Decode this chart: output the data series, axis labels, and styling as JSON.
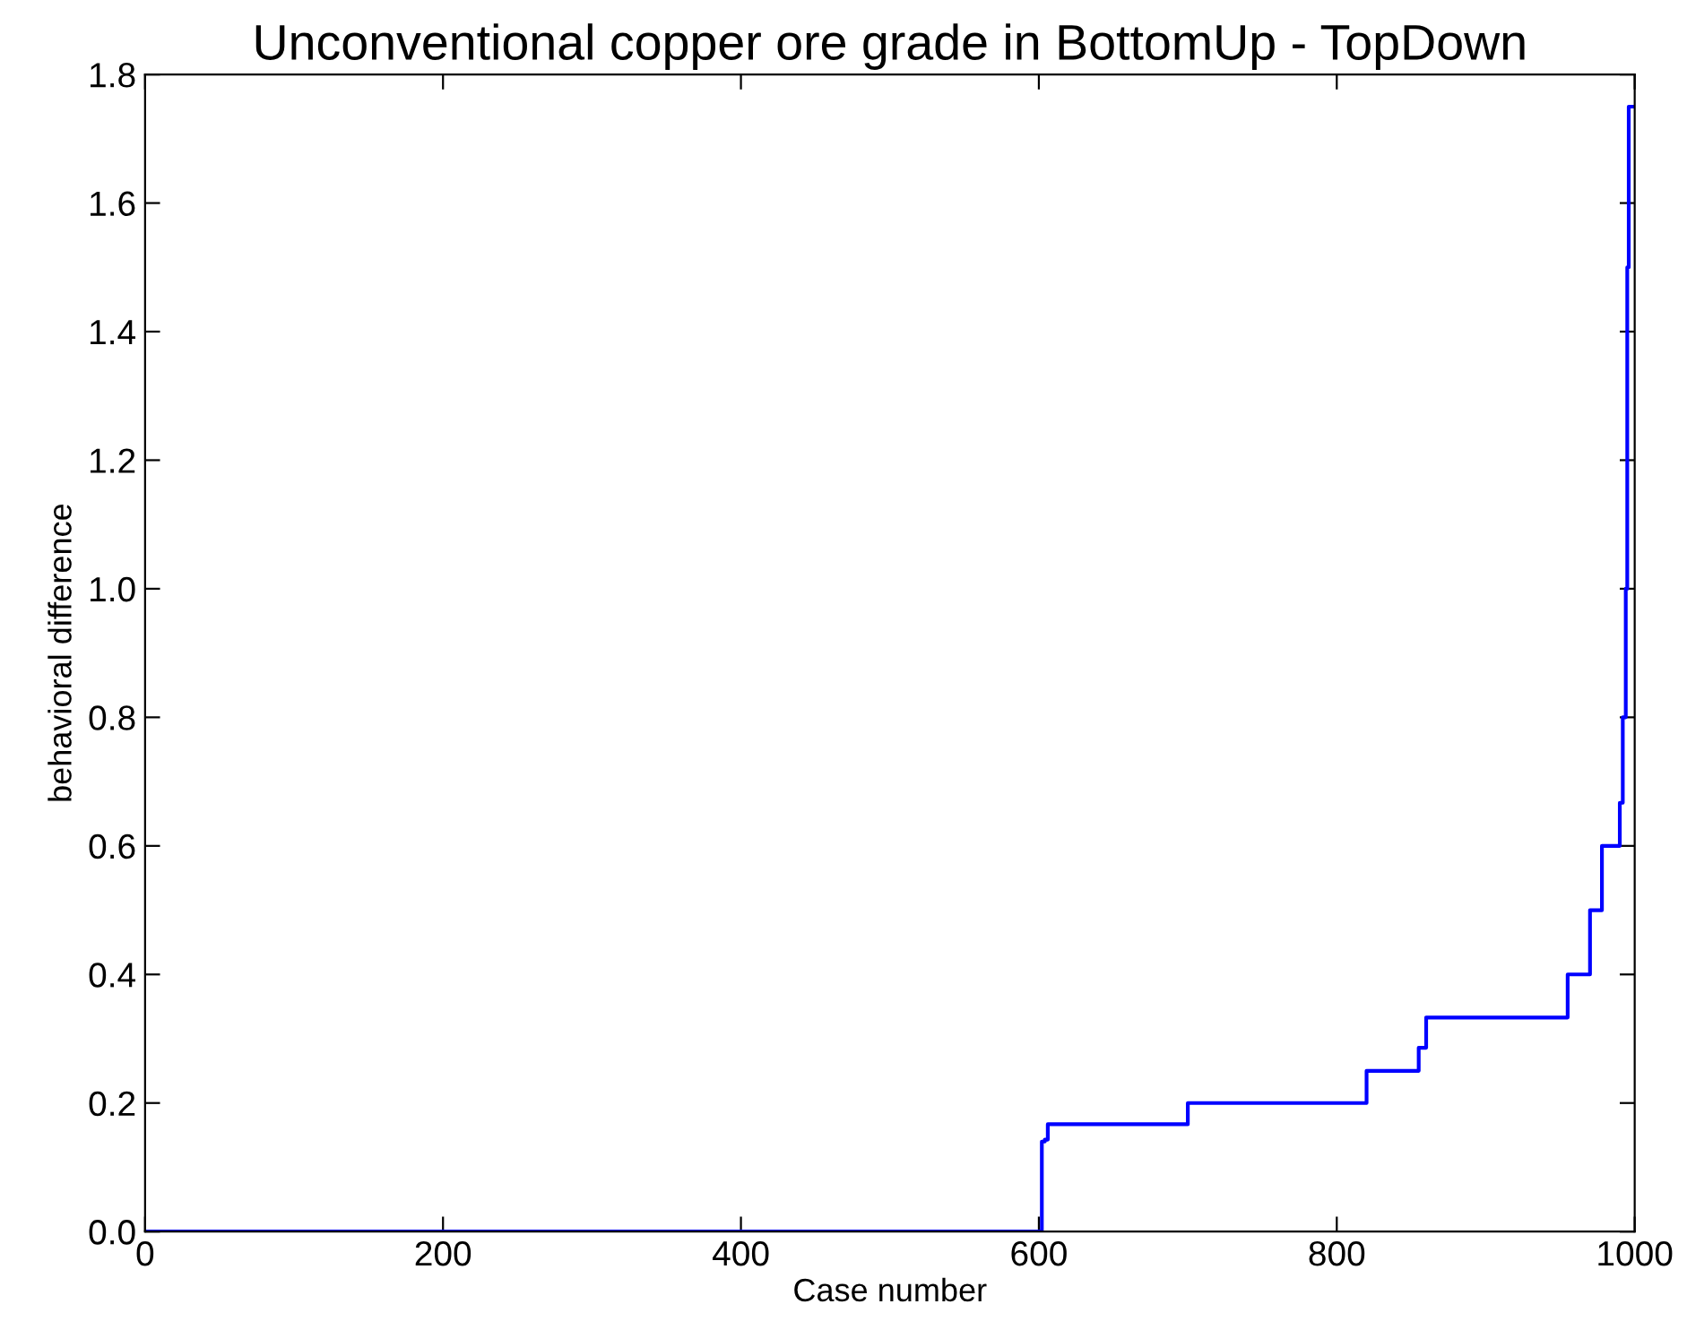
{
  "chart_data": {
    "type": "step",
    "title": "Unconventional copper ore grade in BottomUp - TopDown",
    "xlabel": "Case number",
    "ylabel": "behavioral difference",
    "series": [
      {
        "color": "#0000ff",
        "x": [
          0,
          602,
          604,
          606,
          700,
          820,
          855,
          860,
          955,
          970,
          978,
          990,
          992,
          994,
          995,
          996,
          1000
        ],
        "values": [
          0,
          0.14,
          0.143,
          0.167,
          0.2,
          0.25,
          0.286,
          0.333,
          0.4,
          0.5,
          0.6,
          0.667,
          0.8,
          1.0,
          1.5,
          1.75,
          1.75
        ]
      }
    ],
    "xlim": [
      0,
      1000
    ],
    "ylim": [
      0,
      1.8
    ],
    "xticks": [
      0,
      200,
      400,
      600,
      800,
      1000
    ],
    "yticks": [
      {
        "value": 0,
        "label": "0.0"
      },
      {
        "value": 0.2,
        "label": "0.2"
      },
      {
        "value": 0.4,
        "label": "0.4"
      },
      {
        "value": 0.6,
        "label": "0.6"
      },
      {
        "value": 0.8,
        "label": "0.8"
      },
      {
        "value": 1.0,
        "label": "1.0"
      },
      {
        "value": 1.2,
        "label": "1.2"
      },
      {
        "value": 1.4,
        "label": "1.4"
      },
      {
        "value": 1.6,
        "label": "1.6"
      },
      {
        "value": 1.8,
        "label": "1.8"
      }
    ],
    "grid": false,
    "legend": false
  }
}
